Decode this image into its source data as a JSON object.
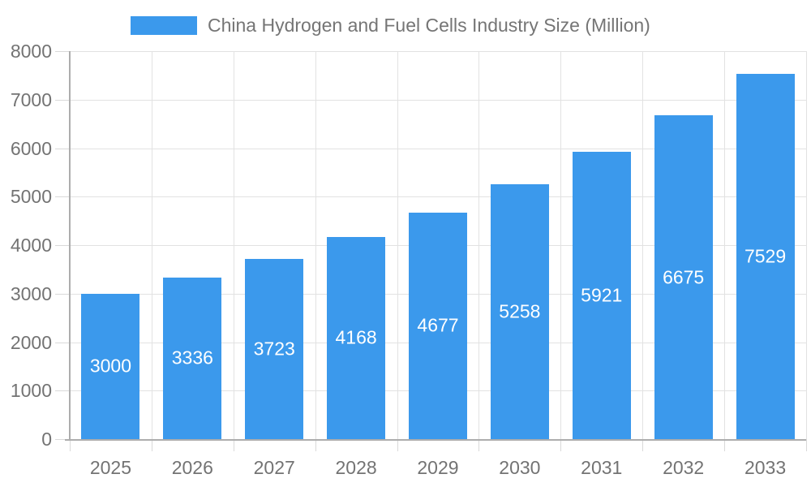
{
  "legend": {
    "label": "China Hydrogen and Fuel Cells Industry Size (Million)"
  },
  "colors": {
    "bar": "#3b99ec",
    "grid": "#e2e2e2",
    "axis": "#adadad",
    "tick": "#d9d9d9",
    "text": "#737373",
    "bar_label": "#ffffff",
    "background": "#ffffff"
  },
  "chart_data": {
    "type": "bar",
    "title": "China Hydrogen and Fuel Cells Industry Size (Million)",
    "categories": [
      "2025",
      "2026",
      "2027",
      "2028",
      "2029",
      "2030",
      "2031",
      "2032",
      "2033"
    ],
    "values": [
      3000,
      3336,
      3723,
      4168,
      4677,
      5258,
      5921,
      6675,
      7529
    ],
    "xlabel": "",
    "ylabel": "",
    "ylim": [
      0,
      8000
    ],
    "yticks": [
      0,
      1000,
      2000,
      3000,
      4000,
      5000,
      6000,
      7000,
      8000
    ],
    "grid": true,
    "legend_position": "top",
    "bar_labels_inside": true
  }
}
